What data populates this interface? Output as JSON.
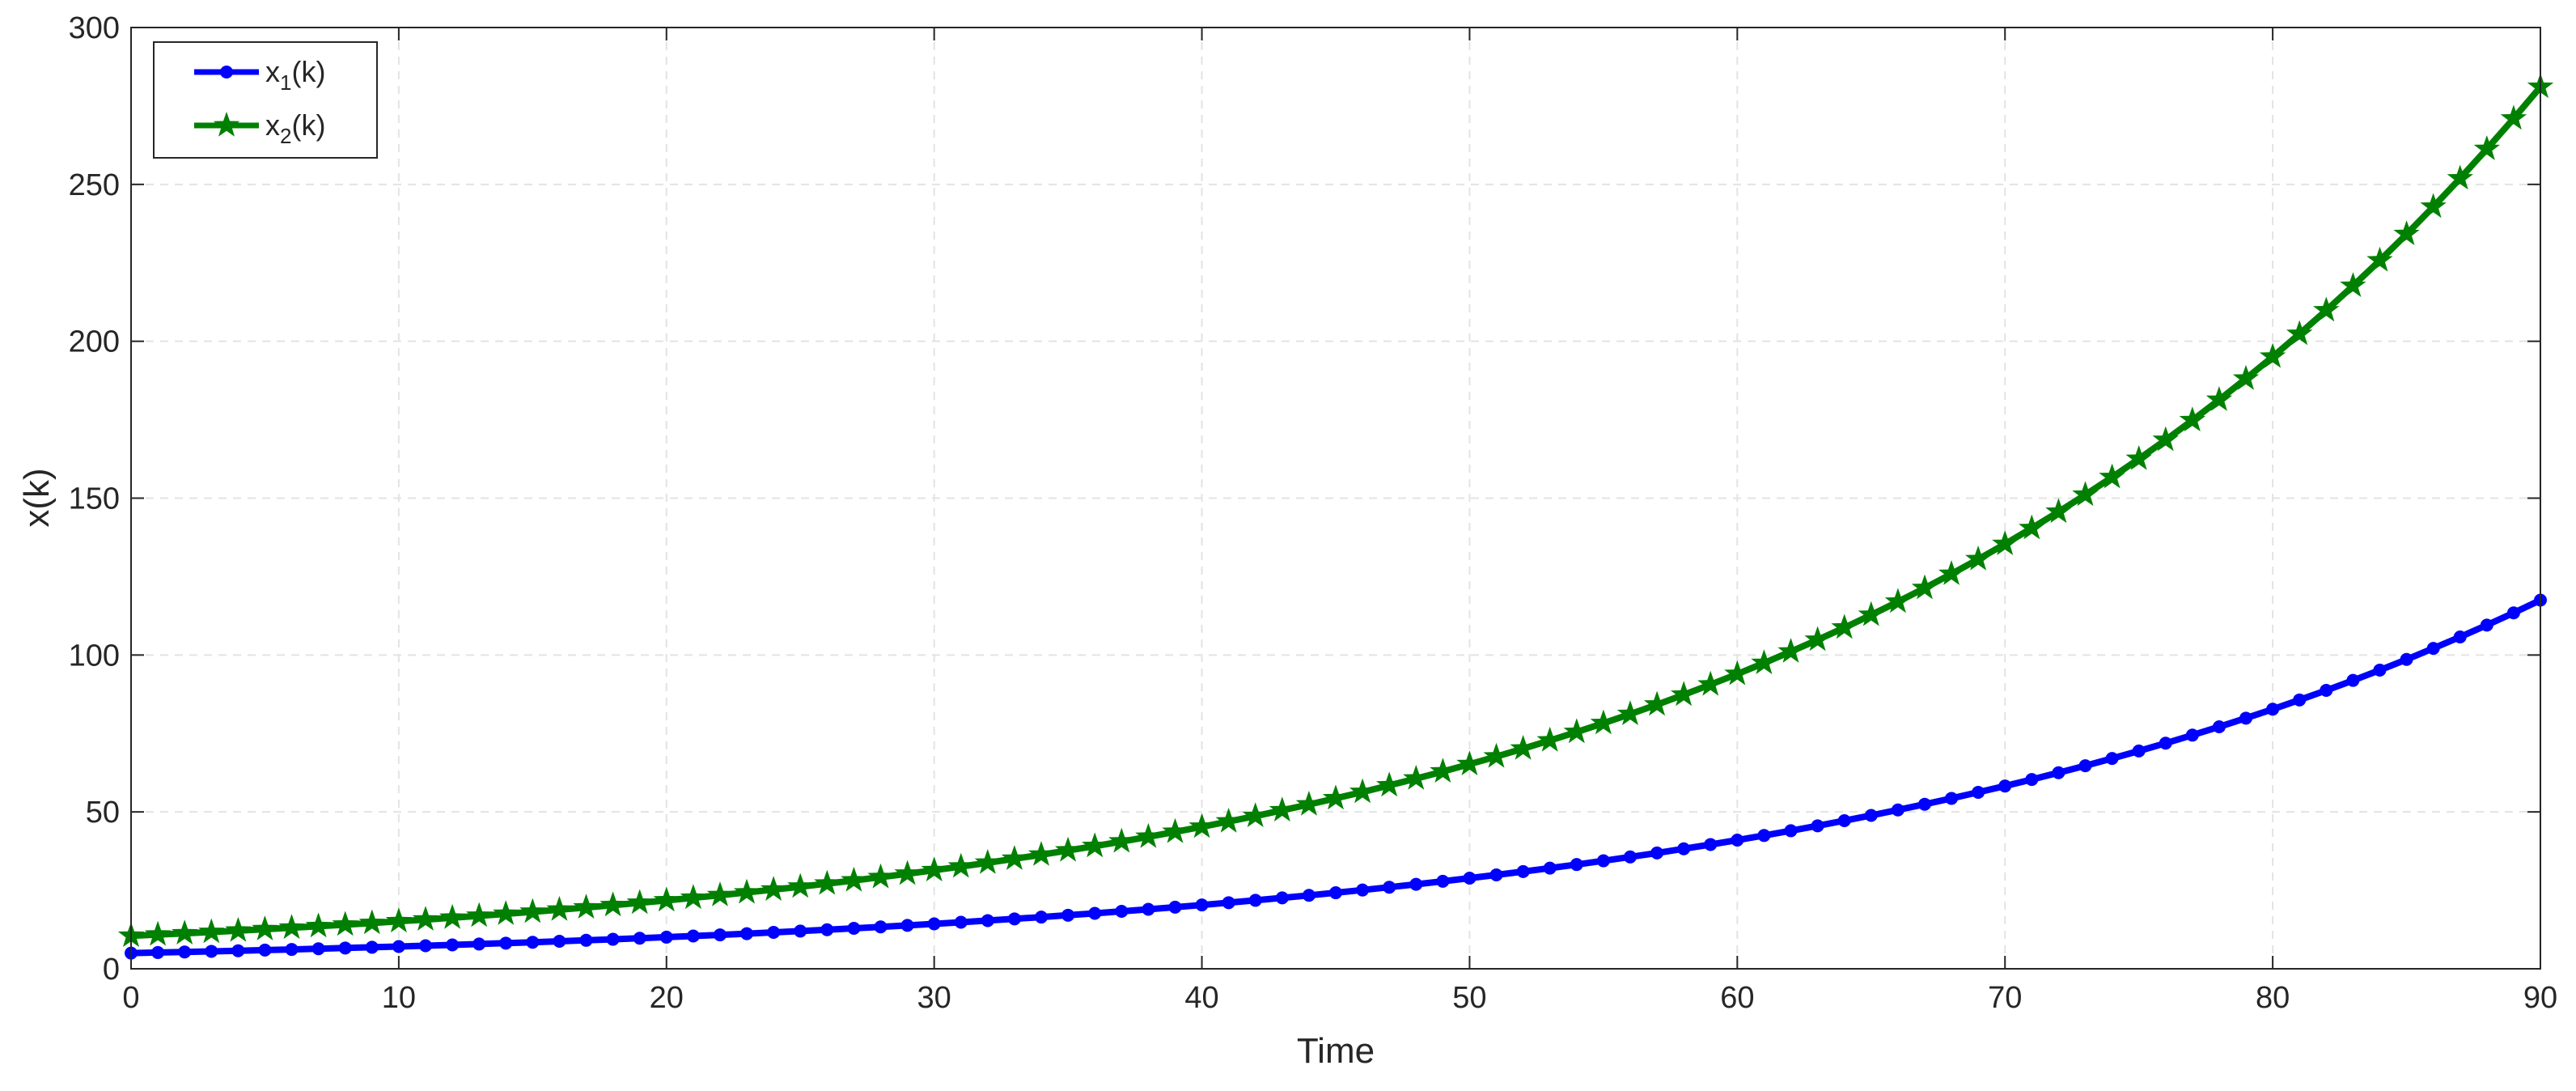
{
  "chart_data": {
    "type": "line",
    "title": "",
    "xlabel": "Time",
    "ylabel": "x(k)",
    "xlim": [
      0,
      90
    ],
    "ylim": [
      0,
      300
    ],
    "xticks": [
      0,
      10,
      20,
      30,
      40,
      50,
      60,
      70,
      80,
      90
    ],
    "yticks": [
      0,
      50,
      100,
      150,
      200,
      250,
      300
    ],
    "grid": true,
    "legend_position": "top-left",
    "series": [
      {
        "name_base": "x",
        "name_sub": "1",
        "name_suffix": "(k)",
        "color": "#0000ff",
        "marker": "dot",
        "x_start": 0,
        "x_step": 1,
        "y_start": 5,
        "y_growth_per_step": 1.0357
      },
      {
        "name_base": "x",
        "name_sub": "2",
        "name_suffix": "(k)",
        "color": "#008000",
        "marker": "star",
        "x_start": 0,
        "x_step": 1,
        "y_start": 10.5,
        "y_growth_per_step": 1.0372
      }
    ]
  }
}
